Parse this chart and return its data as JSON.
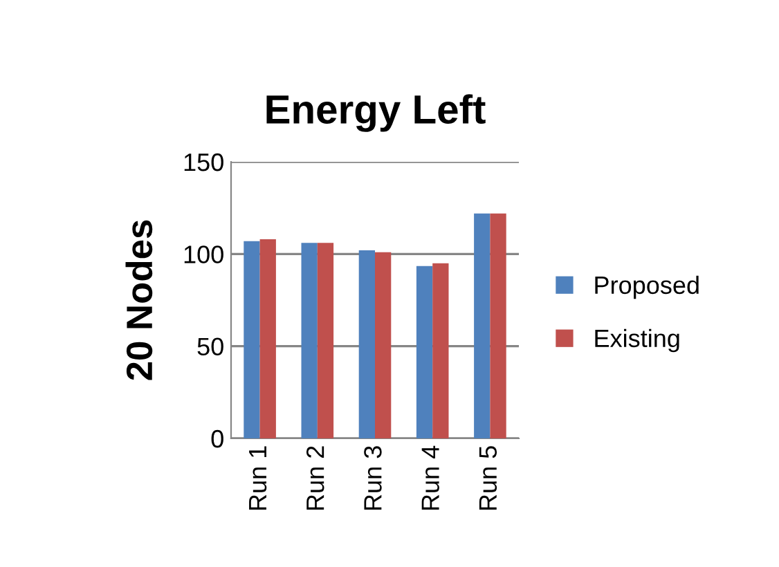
{
  "chart_data": {
    "type": "bar",
    "title": "Energy Left",
    "ylabel": "20 Nodes",
    "categories": [
      "Run 1",
      "Run 2",
      "Run 3",
      "Run 4",
      "Run 5"
    ],
    "series": [
      {
        "name": "Proposed",
        "color": "#4f81bd",
        "values": [
          107,
          106,
          102,
          93.5,
          122
        ]
      },
      {
        "name": "Existing",
        "color": "#c0504d",
        "values": [
          108,
          106,
          101,
          95,
          122
        ]
      }
    ],
    "ylim": [
      0,
      150
    ],
    "yticks": [
      0,
      50,
      100,
      150
    ],
    "grid": "y",
    "legend": "right"
  }
}
